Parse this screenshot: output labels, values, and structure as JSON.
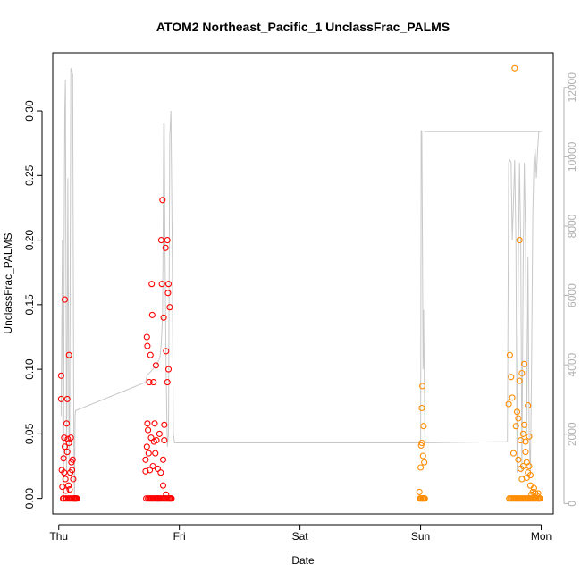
{
  "chart_data": {
    "type": "scatter",
    "title": "ATOM2 Northeast_Pacific_1 UnclassFrac_PALMS",
    "xlabel": "Date",
    "ylabel": "UnclassFrac_PALMS",
    "xlim_days": [
      -0.05,
      4.1
    ],
    "ylim": [
      -0.012,
      0.345
    ],
    "y2lim": [
      -300,
      13000
    ],
    "x_ticks": [
      {
        "day": 0,
        "label": "Thu"
      },
      {
        "day": 1,
        "label": "Fri"
      },
      {
        "day": 2,
        "label": "Sat"
      },
      {
        "day": 3,
        "label": "Sun"
      },
      {
        "day": 4,
        "label": "Mon"
      }
    ],
    "y_ticks": [
      "0.00",
      "0.05",
      "0.10",
      "0.15",
      "0.20",
      "0.25",
      "0.30"
    ],
    "y2_ticks": [
      "0",
      "2000",
      "4000",
      "6000",
      "8000",
      "10000",
      "12000"
    ],
    "grid": false,
    "colors": {
      "red": "#ff0000",
      "orange": "#ff8c00",
      "altitude": "#c8c8c8",
      "axis": "#000000",
      "right_axis": "#b0b0b0"
    },
    "series": [
      {
        "color": "#ff0000",
        "points": [
          [
            0.02,
            0.095
          ],
          [
            0.02,
            0.077
          ],
          [
            0.025,
            0.022
          ],
          [
            0.03,
            0.009
          ],
          [
            0.035,
            0.0
          ],
          [
            0.04,
            0.031
          ],
          [
            0.04,
            0.0
          ],
          [
            0.045,
            0.047
          ],
          [
            0.045,
            0.02
          ],
          [
            0.05,
            0.154
          ],
          [
            0.05,
            0.04
          ],
          [
            0.055,
            0.0
          ],
          [
            0.055,
            0.015
          ],
          [
            0.06,
            0.006
          ],
          [
            0.065,
            0.058
          ],
          [
            0.065,
            0.0
          ],
          [
            0.07,
            0.077
          ],
          [
            0.07,
            0.036
          ],
          [
            0.075,
            0.046
          ],
          [
            0.08,
            0.0
          ],
          [
            0.08,
            0.01
          ],
          [
            0.085,
            0.111
          ],
          [
            0.085,
            0.043
          ],
          [
            0.09,
            0.007
          ],
          [
            0.09,
            0.0
          ],
          [
            0.095,
            0.02
          ],
          [
            0.1,
            0.047
          ],
          [
            0.1,
            0.0
          ],
          [
            0.105,
            0.028
          ],
          [
            0.11,
            0.022
          ],
          [
            0.11,
            0.0
          ],
          [
            0.115,
            0.03
          ],
          [
            0.12,
            0.0
          ],
          [
            0.12,
            0.015
          ],
          [
            0.125,
            0.0
          ],
          [
            0.13,
            0.0
          ],
          [
            0.135,
            0.0
          ],
          [
            0.14,
            0.0
          ],
          [
            0.145,
            0.0
          ],
          [
            0.15,
            0.0
          ],
          [
            0.72,
            0.021
          ],
          [
            0.72,
            0.03
          ],
          [
            0.725,
            0.0
          ],
          [
            0.73,
            0.125
          ],
          [
            0.73,
            0.04
          ],
          [
            0.735,
            0.118
          ],
          [
            0.735,
            0.058
          ],
          [
            0.74,
            0.053
          ],
          [
            0.74,
            0.0
          ],
          [
            0.745,
            0.035
          ],
          [
            0.75,
            0.09
          ],
          [
            0.75,
            0.0
          ],
          [
            0.755,
            0.022
          ],
          [
            0.76,
            0.111
          ],
          [
            0.76,
            0.0
          ],
          [
            0.765,
            0.047
          ],
          [
            0.77,
            0.166
          ],
          [
            0.77,
            0.0
          ],
          [
            0.775,
            0.142
          ],
          [
            0.78,
            0.025
          ],
          [
            0.78,
            0.0
          ],
          [
            0.785,
            0.09
          ],
          [
            0.79,
            0.044
          ],
          [
            0.79,
            0.0
          ],
          [
            0.795,
            0.058
          ],
          [
            0.8,
            0.035
          ],
          [
            0.8,
            0.0
          ],
          [
            0.805,
            0.103
          ],
          [
            0.81,
            0.045
          ],
          [
            0.81,
            0.0
          ],
          [
            0.815,
            0.0
          ],
          [
            0.82,
            0.023
          ],
          [
            0.82,
            0.0
          ],
          [
            0.825,
            0.0
          ],
          [
            0.83,
            0.0
          ],
          [
            0.835,
            0.05
          ],
          [
            0.84,
            0.0
          ],
          [
            0.845,
            0.02
          ],
          [
            0.85,
            0.2
          ],
          [
            0.85,
            0.0
          ],
          [
            0.855,
            0.166
          ],
          [
            0.86,
            0.231
          ],
          [
            0.86,
            0.0
          ],
          [
            0.865,
            0.01
          ],
          [
            0.865,
            0.03
          ],
          [
            0.87,
            0.14
          ],
          [
            0.87,
            0.0
          ],
          [
            0.875,
            0.057
          ],
          [
            0.875,
            0.045
          ],
          [
            0.88,
            0.0
          ],
          [
            0.885,
            0.194
          ],
          [
            0.885,
            0.0
          ],
          [
            0.89,
            0.114
          ],
          [
            0.89,
            0.003
          ],
          [
            0.895,
            0.0
          ],
          [
            0.9,
            0.09
          ],
          [
            0.9,
            0.2
          ],
          [
            0.905,
            0.159
          ],
          [
            0.905,
            0.0
          ],
          [
            0.91,
            0.166
          ],
          [
            0.91,
            0.1
          ],
          [
            0.915,
            0.0
          ],
          [
            0.92,
            0.148
          ],
          [
            0.92,
            0.0
          ],
          [
            0.925,
            0.0
          ],
          [
            0.93,
            0.0
          ],
          [
            0.935,
            0.0
          ]
        ]
      },
      {
        "color": "#ff8c00",
        "points": [
          [
            2.99,
            0.005
          ],
          [
            2.995,
            0.0
          ],
          [
            3.0,
            0.024
          ],
          [
            3.0,
            0.0
          ],
          [
            3.005,
            0.041
          ],
          [
            3.005,
            0.0
          ],
          [
            3.01,
            0.07
          ],
          [
            3.01,
            0.043
          ],
          [
            3.015,
            0.087
          ],
          [
            3.015,
            0.0
          ],
          [
            3.02,
            0.033
          ],
          [
            3.02,
            0.0
          ],
          [
            3.025,
            0.056
          ],
          [
            3.025,
            0.0
          ],
          [
            3.03,
            0.028
          ],
          [
            3.03,
            0.0
          ],
          [
            3.035,
            0.0
          ],
          [
            3.73,
            0.073
          ],
          [
            3.735,
            0.0
          ],
          [
            3.74,
            0.111
          ],
          [
            3.745,
            0.0
          ],
          [
            3.75,
            0.094
          ],
          [
            3.755,
            0.0
          ],
          [
            3.76,
            0.078
          ],
          [
            3.765,
            0.0
          ],
          [
            3.77,
            0.035
          ],
          [
            3.775,
            0.0
          ],
          [
            3.78,
            0.333
          ],
          [
            3.785,
            0.0
          ],
          [
            3.79,
            0.056
          ],
          [
            3.795,
            0.0
          ],
          [
            3.8,
            0.067
          ],
          [
            3.805,
            0.0
          ],
          [
            3.81,
            0.03
          ],
          [
            3.81,
            0.062
          ],
          [
            3.815,
            0.0
          ],
          [
            3.82,
            0.091
          ],
          [
            3.82,
            0.2
          ],
          [
            3.825,
            0.0
          ],
          [
            3.83,
            0.023
          ],
          [
            3.83,
            0.045
          ],
          [
            3.835,
            0.0
          ],
          [
            3.84,
            0.097
          ],
          [
            3.84,
            0.015
          ],
          [
            3.845,
            0.0
          ],
          [
            3.85,
            0.025
          ],
          [
            3.85,
            0.05
          ],
          [
            3.855,
            0.0
          ],
          [
            3.86,
            0.057
          ],
          [
            3.86,
            0.104
          ],
          [
            3.865,
            0.0
          ],
          [
            3.87,
            0.036
          ],
          [
            3.87,
            0.044
          ],
          [
            3.875,
            0.0
          ],
          [
            3.88,
            0.016
          ],
          [
            3.88,
            0.028
          ],
          [
            3.885,
            0.0
          ],
          [
            3.89,
            0.072
          ],
          [
            3.89,
            0.02
          ],
          [
            3.895,
            0.0
          ],
          [
            3.9,
            0.048
          ],
          [
            3.9,
            0.025
          ],
          [
            3.905,
            0.0
          ],
          [
            3.91,
            0.01
          ],
          [
            3.91,
            0.018
          ],
          [
            3.915,
            0.0
          ],
          [
            3.92,
            0.003
          ],
          [
            3.925,
            0.0
          ],
          [
            3.93,
            0.005
          ],
          [
            3.935,
            0.0
          ],
          [
            3.94,
            0.008
          ],
          [
            3.945,
            0.0
          ],
          [
            3.95,
            0.004
          ],
          [
            3.955,
            0.0
          ],
          [
            3.96,
            0.0
          ],
          [
            3.965,
            0.002
          ],
          [
            3.97,
            0.0
          ],
          [
            3.975,
            0.004
          ],
          [
            3.98,
            0.0
          ],
          [
            3.985,
            0.0
          ],
          [
            3.99,
            0.0
          ]
        ]
      }
    ],
    "altitude_line": {
      "color": "#c8c8c8",
      "points": [
        [
          0.02,
          0.064
        ],
        [
          0.03,
          0.2
        ],
        [
          0.035,
          0.02
        ],
        [
          0.04,
          0.0
        ],
        [
          0.045,
          0.2
        ],
        [
          0.05,
          0.3
        ],
        [
          0.055,
          0.324
        ],
        [
          0.06,
          0.18
        ],
        [
          0.065,
          0.02
        ],
        [
          0.07,
          0.12
        ],
        [
          0.075,
          0.248
        ],
        [
          0.08,
          0.15
        ],
        [
          0.085,
          0.03
        ],
        [
          0.09,
          0.05
        ],
        [
          0.095,
          0.2
        ],
        [
          0.1,
          0.333
        ],
        [
          0.11,
          0.33
        ],
        [
          0.115,
          0.328
        ],
        [
          0.12,
          0.2
        ],
        [
          0.125,
          0.04
        ],
        [
          0.13,
          0.0
        ],
        [
          0.135,
          0.064
        ],
        [
          0.14,
          0.068
        ],
        [
          0.72,
          0.09
        ],
        [
          0.73,
          0.095
        ],
        [
          0.78,
          0.1
        ],
        [
          0.82,
          0.105
        ],
        [
          0.84,
          0.11
        ],
        [
          0.85,
          0.12
        ],
        [
          0.86,
          0.14
        ],
        [
          0.865,
          0.2
        ],
        [
          0.87,
          0.29
        ],
        [
          0.875,
          0.29
        ],
        [
          0.88,
          0.2
        ],
        [
          0.89,
          0.1
        ],
        [
          0.9,
          0.04
        ],
        [
          0.91,
          0.05
        ],
        [
          0.92,
          0.28
        ],
        [
          0.93,
          0.3
        ],
        [
          0.94,
          0.2
        ],
        [
          0.95,
          0.05
        ],
        [
          0.96,
          0.043
        ],
        [
          3.0,
          0.043
        ],
        [
          3.005,
          0.285
        ],
        [
          3.01,
          0.284
        ],
        [
          3.015,
          0.2
        ],
        [
          3.02,
          0.1
        ],
        [
          3.025,
          0.146
        ],
        [
          3.03,
          0.1
        ],
        [
          3.035,
          0.05
        ],
        [
          3.04,
          0.043
        ],
        [
          3.72,
          0.044
        ],
        [
          3.73,
          0.26
        ],
        [
          3.74,
          0.262
        ],
        [
          3.75,
          0.26
        ],
        [
          3.76,
          0.2
        ],
        [
          3.77,
          0.23
        ],
        [
          3.78,
          0.262
        ],
        [
          3.79,
          0.2
        ],
        [
          3.8,
          0.02
        ],
        [
          3.81,
          0.18
        ],
        [
          3.82,
          0.26
        ],
        [
          3.83,
          0.2
        ],
        [
          3.84,
          0.02
        ],
        [
          3.85,
          0.18
        ],
        [
          3.86,
          0.26
        ],
        [
          3.87,
          0.2
        ],
        [
          3.88,
          0.05
        ],
        [
          3.89,
          0.187
        ],
        [
          3.9,
          0.05
        ],
        [
          3.91,
          0.02
        ],
        [
          3.92,
          0.1
        ],
        [
          3.93,
          0.22
        ],
        [
          3.94,
          0.26
        ],
        [
          3.95,
          0.27
        ],
        [
          3.96,
          0.248
        ],
        [
          3.97,
          0.27
        ],
        [
          3.98,
          0.284
        ],
        [
          3.99,
          0.284
        ],
        [
          4.0,
          0.284
        ],
        [
          3.03,
          0.284
        ]
      ]
    }
  }
}
